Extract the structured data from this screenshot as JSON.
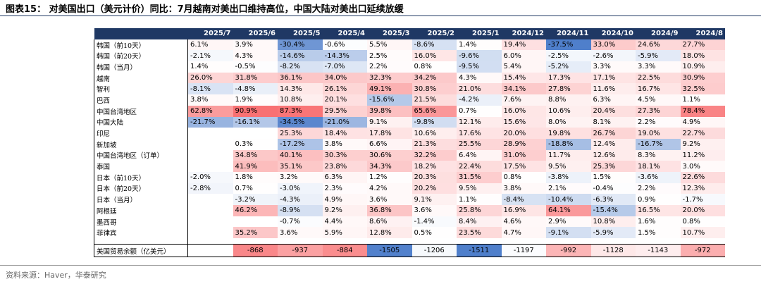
{
  "header": {
    "title": "图表15：   对美国出口（美元计价）同比：7月越南对美出口维持高位，中国大陆对美出口延续放缓"
  },
  "table": {
    "columns": [
      "2025/7",
      "2025/6",
      "2025/5",
      "2025/4",
      "2025/3",
      "2025/2",
      "2025/1",
      "2024/12",
      "2024/11",
      "2024/10",
      "2024/9",
      "2024/8"
    ],
    "rows": [
      {
        "label": "韩国（前10天）",
        "cells": [
          "6.1%",
          "3.9%",
          "-30.4%",
          "-0.6%",
          "5.5%",
          "-8.6%",
          "1.4%",
          "19.4%",
          "-37.5%",
          "33.0%",
          "24.6%",
          "27.7%"
        ]
      },
      {
        "label": "韩国（前20天）",
        "cells": [
          "-2.1%",
          "4.3%",
          "-14.6%",
          "-14.3%",
          "2.5%",
          "16.0%",
          "-9.6%",
          "6.0%",
          "-2.5%",
          "-2.6%",
          "-5.9%",
          "18.0%"
        ]
      },
      {
        "label": "韩国（当月）",
        "cells": [
          "1.4%",
          "-0.5%",
          "-8.2%",
          "-7.0%",
          "2.2%",
          "0.8%",
          "-9.5%",
          "5.4%",
          "-5.2%",
          "3.3%",
          "3.3%",
          "10.9%"
        ]
      },
      {
        "label": "越南",
        "cells": [
          "26.0%",
          "31.8%",
          "36.1%",
          "34.0%",
          "32.3%",
          "34.2%",
          "4.3%",
          "15.4%",
          "17.3%",
          "17.1%",
          "22.5%",
          "30.9%"
        ]
      },
      {
        "label": "智利",
        "cells": [
          "-8.1%",
          "-4.8%",
          "14.3%",
          "26.1%",
          "49.1%",
          "30.8%",
          "21.0%",
          "34.1%",
          "27.8%",
          "11.6%",
          "16.7%",
          "32.5%"
        ]
      },
      {
        "label": "巴西",
        "cells": [
          "3.8%",
          "1.9%",
          "10.8%",
          "20.1%",
          "-15.6%",
          "21.5%",
          "-4.2%",
          "7.6%",
          "8.8%",
          "6.3%",
          "4.5%",
          "1.1%"
        ]
      },
      {
        "label": "中国台湾地区",
        "cells": [
          "62.8%",
          "90.9%",
          "87.3%",
          "29.5%",
          "39.8%",
          "65.6%",
          "0.7%",
          "16.0%",
          "10.6%",
          "20.4%",
          "27.3%",
          "78.4%"
        ]
      },
      {
        "label": "中国大陆",
        "cells": [
          "-21.7%",
          "-16.1%",
          "-34.5%",
          "-21.0%",
          "9.1%",
          "-9.8%",
          "12.1%",
          "15.6%",
          "8.0%",
          "8.1%",
          "2.2%",
          "4.9%"
        ]
      },
      {
        "label": "印尼",
        "cells": [
          null,
          null,
          "25.3%",
          "18.4%",
          "17.8%",
          "10.6%",
          "17.6%",
          "20.0%",
          "19.8%",
          "26.7%",
          "19.0%",
          "22.7%"
        ]
      },
      {
        "label": "新加坡",
        "cells": [
          null,
          "0.3%",
          "-17.2%",
          "3.8%",
          "6.6%",
          "21.3%",
          "25.5%",
          "28.9%",
          "-18.8%",
          "12.4%",
          "-16.7%",
          "9.2%"
        ]
      },
      {
        "label": "中国台湾地区（订单）",
        "cells": [
          null,
          "34.8%",
          "40.1%",
          "30.3%",
          "30.6%",
          "32.2%",
          "6.4%",
          "31.0%",
          "11.7%",
          "12.6%",
          "8.3%",
          "11.2%"
        ]
      },
      {
        "label": "泰国",
        "cells": [
          null,
          "41.9%",
          "35.1%",
          "23.8%",
          "34.3%",
          "18.2%",
          "22.4%",
          "17.5%",
          "9.5%",
          "25.3%",
          "18.1%",
          "3.0%"
        ]
      },
      {
        "label": "日本（前10天）",
        "cells": [
          "-2.0%",
          "1.8%",
          "3.2%",
          "6.3%",
          "1.2%",
          "20.3%",
          "31.5%",
          "0.8%",
          "-3.8%",
          "1.5%",
          "-3.6%",
          "22.6%"
        ]
      },
      {
        "label": "日本（前20天）",
        "cells": [
          "-2.8%",
          "0.7%",
          "-3.0%",
          "2.3%",
          "4.2%",
          "20.2%",
          "9.5%",
          "3.8%",
          "2.1%",
          "-0.4%",
          "2.2%",
          "12.3%"
        ]
      },
      {
        "label": "日本（当月）",
        "cells": [
          null,
          "-3.2%",
          "-4.3%",
          "4.9%",
          "3.6%",
          "9.1%",
          "1.1%",
          "-8.4%",
          "-10.4%",
          "-6.3%",
          "0.9%",
          "-1.7%"
        ]
      },
      {
        "label": "阿根廷",
        "cells": [
          null,
          "46.2%",
          "-8.9%",
          "9.2%",
          "36.8%",
          "3.6%",
          "25.8%",
          "16.9%",
          "64.1%",
          "-15.4%",
          "16.5%",
          "20.0%"
        ]
      },
      {
        "label": "墨西哥",
        "cells": [
          null,
          null,
          "-0.7%",
          "4.4%",
          "8.6%",
          "-1.4%",
          "8.4%",
          "4.6%",
          "2.9%",
          "10.8%",
          "1.6%",
          "0.8%"
        ]
      },
      {
        "label": "菲律宾",
        "cells": [
          null,
          "35.2%",
          "3.6%",
          "5.9%",
          "12.8%",
          "0.5%",
          "23.5%",
          "4.7%",
          "-9.1%",
          "-5.9%",
          "1.5%",
          "10.7%"
        ]
      }
    ],
    "balance": {
      "label": "美国贸易余额（亿美元）",
      "cells": [
        null,
        "-868",
        "-937",
        "-884",
        "-1505",
        "-1206",
        "-1511",
        "-1197",
        "-992",
        "-1128",
        "-1143",
        "-972"
      ]
    }
  },
  "footer": {
    "source": "资料来源：Haver，华泰研究"
  }
}
